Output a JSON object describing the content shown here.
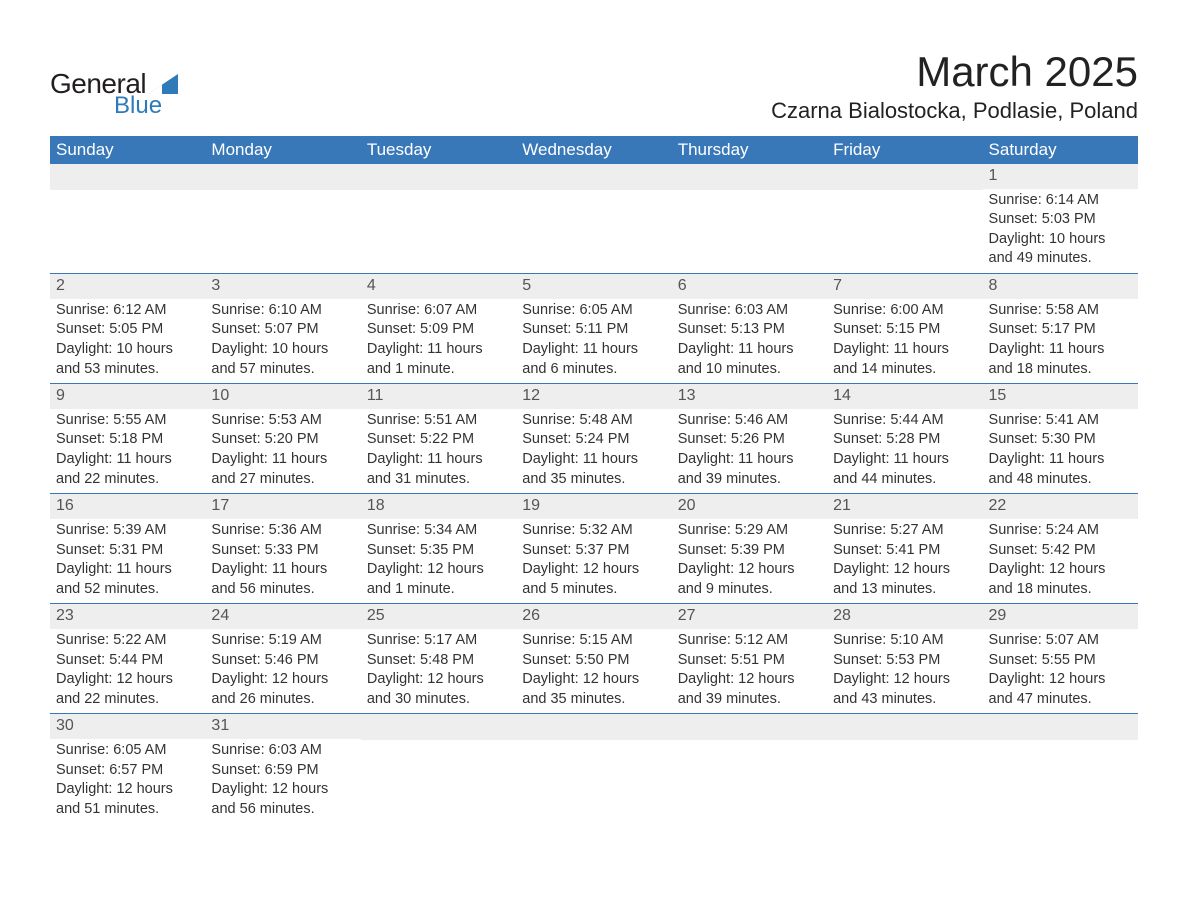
{
  "logo": {
    "text_general": "General",
    "text_blue": "Blue",
    "shape_color": "#2f7ab8",
    "text_color_general": "#231f20",
    "text_color_blue": "#2f7ab8"
  },
  "header": {
    "month_title": "March 2025",
    "location": "Czarna Bialostocka, Podlasie, Poland"
  },
  "colors": {
    "header_bg": "#3878b8",
    "header_text": "#ffffff",
    "daynum_bg": "#eeeeee",
    "daynum_text": "#555555",
    "cell_text": "#333333",
    "row_divider": "#3878b8",
    "page_bg": "#ffffff"
  },
  "day_labels": [
    "Sunday",
    "Monday",
    "Tuesday",
    "Wednesday",
    "Thursday",
    "Friday",
    "Saturday"
  ],
  "weeks": [
    [
      null,
      null,
      null,
      null,
      null,
      null,
      {
        "n": "1",
        "sunrise": "Sunrise: 6:14 AM",
        "sunset": "Sunset: 5:03 PM",
        "daylight": "Daylight: 10 hours and 49 minutes."
      }
    ],
    [
      {
        "n": "2",
        "sunrise": "Sunrise: 6:12 AM",
        "sunset": "Sunset: 5:05 PM",
        "daylight": "Daylight: 10 hours and 53 minutes."
      },
      {
        "n": "3",
        "sunrise": "Sunrise: 6:10 AM",
        "sunset": "Sunset: 5:07 PM",
        "daylight": "Daylight: 10 hours and 57 minutes."
      },
      {
        "n": "4",
        "sunrise": "Sunrise: 6:07 AM",
        "sunset": "Sunset: 5:09 PM",
        "daylight": "Daylight: 11 hours and 1 minute."
      },
      {
        "n": "5",
        "sunrise": "Sunrise: 6:05 AM",
        "sunset": "Sunset: 5:11 PM",
        "daylight": "Daylight: 11 hours and 6 minutes."
      },
      {
        "n": "6",
        "sunrise": "Sunrise: 6:03 AM",
        "sunset": "Sunset: 5:13 PM",
        "daylight": "Daylight: 11 hours and 10 minutes."
      },
      {
        "n": "7",
        "sunrise": "Sunrise: 6:00 AM",
        "sunset": "Sunset: 5:15 PM",
        "daylight": "Daylight: 11 hours and 14 minutes."
      },
      {
        "n": "8",
        "sunrise": "Sunrise: 5:58 AM",
        "sunset": "Sunset: 5:17 PM",
        "daylight": "Daylight: 11 hours and 18 minutes."
      }
    ],
    [
      {
        "n": "9",
        "sunrise": "Sunrise: 5:55 AM",
        "sunset": "Sunset: 5:18 PM",
        "daylight": "Daylight: 11 hours and 22 minutes."
      },
      {
        "n": "10",
        "sunrise": "Sunrise: 5:53 AM",
        "sunset": "Sunset: 5:20 PM",
        "daylight": "Daylight: 11 hours and 27 minutes."
      },
      {
        "n": "11",
        "sunrise": "Sunrise: 5:51 AM",
        "sunset": "Sunset: 5:22 PM",
        "daylight": "Daylight: 11 hours and 31 minutes."
      },
      {
        "n": "12",
        "sunrise": "Sunrise: 5:48 AM",
        "sunset": "Sunset: 5:24 PM",
        "daylight": "Daylight: 11 hours and 35 minutes."
      },
      {
        "n": "13",
        "sunrise": "Sunrise: 5:46 AM",
        "sunset": "Sunset: 5:26 PM",
        "daylight": "Daylight: 11 hours and 39 minutes."
      },
      {
        "n": "14",
        "sunrise": "Sunrise: 5:44 AM",
        "sunset": "Sunset: 5:28 PM",
        "daylight": "Daylight: 11 hours and 44 minutes."
      },
      {
        "n": "15",
        "sunrise": "Sunrise: 5:41 AM",
        "sunset": "Sunset: 5:30 PM",
        "daylight": "Daylight: 11 hours and 48 minutes."
      }
    ],
    [
      {
        "n": "16",
        "sunrise": "Sunrise: 5:39 AM",
        "sunset": "Sunset: 5:31 PM",
        "daylight": "Daylight: 11 hours and 52 minutes."
      },
      {
        "n": "17",
        "sunrise": "Sunrise: 5:36 AM",
        "sunset": "Sunset: 5:33 PM",
        "daylight": "Daylight: 11 hours and 56 minutes."
      },
      {
        "n": "18",
        "sunrise": "Sunrise: 5:34 AM",
        "sunset": "Sunset: 5:35 PM",
        "daylight": "Daylight: 12 hours and 1 minute."
      },
      {
        "n": "19",
        "sunrise": "Sunrise: 5:32 AM",
        "sunset": "Sunset: 5:37 PM",
        "daylight": "Daylight: 12 hours and 5 minutes."
      },
      {
        "n": "20",
        "sunrise": "Sunrise: 5:29 AM",
        "sunset": "Sunset: 5:39 PM",
        "daylight": "Daylight: 12 hours and 9 minutes."
      },
      {
        "n": "21",
        "sunrise": "Sunrise: 5:27 AM",
        "sunset": "Sunset: 5:41 PM",
        "daylight": "Daylight: 12 hours and 13 minutes."
      },
      {
        "n": "22",
        "sunrise": "Sunrise: 5:24 AM",
        "sunset": "Sunset: 5:42 PM",
        "daylight": "Daylight: 12 hours and 18 minutes."
      }
    ],
    [
      {
        "n": "23",
        "sunrise": "Sunrise: 5:22 AM",
        "sunset": "Sunset: 5:44 PM",
        "daylight": "Daylight: 12 hours and 22 minutes."
      },
      {
        "n": "24",
        "sunrise": "Sunrise: 5:19 AM",
        "sunset": "Sunset: 5:46 PM",
        "daylight": "Daylight: 12 hours and 26 minutes."
      },
      {
        "n": "25",
        "sunrise": "Sunrise: 5:17 AM",
        "sunset": "Sunset: 5:48 PM",
        "daylight": "Daylight: 12 hours and 30 minutes."
      },
      {
        "n": "26",
        "sunrise": "Sunrise: 5:15 AM",
        "sunset": "Sunset: 5:50 PM",
        "daylight": "Daylight: 12 hours and 35 minutes."
      },
      {
        "n": "27",
        "sunrise": "Sunrise: 5:12 AM",
        "sunset": "Sunset: 5:51 PM",
        "daylight": "Daylight: 12 hours and 39 minutes."
      },
      {
        "n": "28",
        "sunrise": "Sunrise: 5:10 AM",
        "sunset": "Sunset: 5:53 PM",
        "daylight": "Daylight: 12 hours and 43 minutes."
      },
      {
        "n": "29",
        "sunrise": "Sunrise: 5:07 AM",
        "sunset": "Sunset: 5:55 PM",
        "daylight": "Daylight: 12 hours and 47 minutes."
      }
    ],
    [
      {
        "n": "30",
        "sunrise": "Sunrise: 6:05 AM",
        "sunset": "Sunset: 6:57 PM",
        "daylight": "Daylight: 12 hours and 51 minutes."
      },
      {
        "n": "31",
        "sunrise": "Sunrise: 6:03 AM",
        "sunset": "Sunset: 6:59 PM",
        "daylight": "Daylight: 12 hours and 56 minutes."
      },
      null,
      null,
      null,
      null,
      null
    ]
  ]
}
